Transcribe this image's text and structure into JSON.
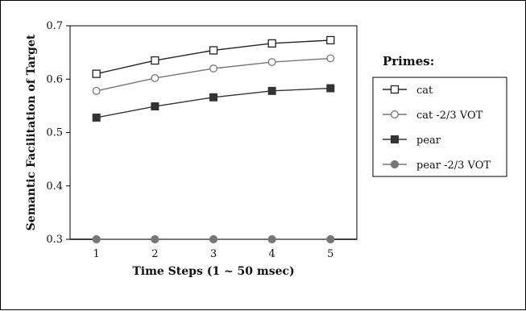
{
  "chart_data": {
    "type": "line",
    "title": "",
    "xlabel": "Time Steps (1 ~ 50 msec)",
    "ylabel": "Semantic Facilitation of Target",
    "x": [
      1,
      2,
      3,
      4,
      5
    ],
    "xlim": [
      0.55,
      5.45
    ],
    "ylim": [
      0.3,
      0.7
    ],
    "yticks": [
      0.3,
      0.4,
      0.5,
      0.6,
      0.7
    ],
    "grid": false,
    "legend_title": "Primes:",
    "legend_position": "right",
    "series": [
      {
        "name": "cat",
        "values": [
          0.61,
          0.635,
          0.654,
          0.667,
          0.673
        ],
        "marker": "square-open",
        "color": "#222222"
      },
      {
        "name": "cat -2/3 VOT",
        "values": [
          0.578,
          0.602,
          0.62,
          0.632,
          0.639
        ],
        "marker": "circle-open",
        "color": "#777777"
      },
      {
        "name": "pear",
        "values": [
          0.528,
          0.549,
          0.566,
          0.578,
          0.583
        ],
        "marker": "square-filled",
        "color": "#333333"
      },
      {
        "name": "pear -2/3  VOT",
        "values": [
          0.3,
          0.3,
          0.3,
          0.3,
          0.3
        ],
        "marker": "circle-filled",
        "color": "#777777"
      }
    ]
  }
}
